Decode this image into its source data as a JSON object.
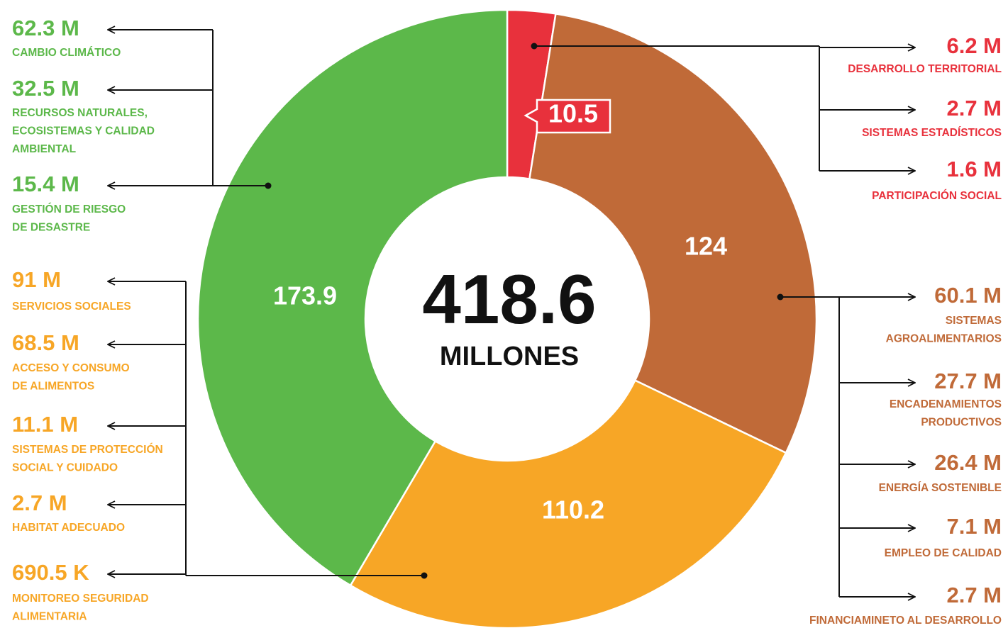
{
  "chart_data": {
    "type": "pie",
    "values": [
      10.5,
      124,
      110.2,
      173.9
    ],
    "colors": [
      "#e8313c",
      "#c06a38",
      "#f7a626",
      "#5cb84a"
    ],
    "total": 418.6,
    "total_label": "MILLONES",
    "breakdowns": [
      [
        {
          "value": "6.2 M",
          "label_lines": [
            "DESARROLLO TERRITORIAL"
          ]
        },
        {
          "value": "2.7 M",
          "label_lines": [
            "SISTEMAS ESTADÍSTICOS"
          ]
        },
        {
          "value": "1.6 M",
          "label_lines": [
            "PARTICIPACIÓN SOCIAL"
          ]
        }
      ],
      [
        {
          "value": "60.1 M",
          "label_lines": [
            "SISTEMAS",
            "AGROALIMENTARIOS"
          ]
        },
        {
          "value": "27.7 M",
          "label_lines": [
            "ENCADENAMIENTOS",
            "PRODUCTIVOS"
          ]
        },
        {
          "value": "26.4 M",
          "label_lines": [
            "ENERGÍA SOSTENIBLE"
          ]
        },
        {
          "value": "7.1 M",
          "label_lines": [
            "EMPLEO DE CALIDAD"
          ]
        },
        {
          "value": "2.7 M",
          "label_lines": [
            "FINANCIAMINETO AL DESARROLLO"
          ]
        }
      ],
      [
        {
          "value": "91 M",
          "label_lines": [
            "SERVICIOS SOCIALES"
          ]
        },
        {
          "value": "68.5 M",
          "label_lines": [
            "ACCESO Y CONSUMO",
            "DE ALIMENTOS"
          ]
        },
        {
          "value": "11.1 M",
          "label_lines": [
            "SISTEMAS DE PROTECCIÓN",
            "SOCIAL Y CUIDADO"
          ]
        },
        {
          "value": "2.7 M",
          "label_lines": [
            "HABITAT ADECUADO"
          ]
        },
        {
          "value": "690.5 K",
          "label_lines": [
            "MONITOREO SEGURIDAD",
            "ALIMENTARIA"
          ]
        }
      ],
      [
        {
          "value": "62.3 M",
          "label_lines": [
            "CAMBIO CLIMÁTICO"
          ]
        },
        {
          "value": "32.5 M",
          "label_lines": [
            "RECURSOS NATURALES,",
            "ECOSISTEMAS Y CALIDAD",
            "AMBIENTAL"
          ]
        },
        {
          "value": "15.4 M",
          "label_lines": [
            "GESTIÓN DE RIESGO",
            "DE DESASTRE"
          ]
        }
      ]
    ]
  }
}
